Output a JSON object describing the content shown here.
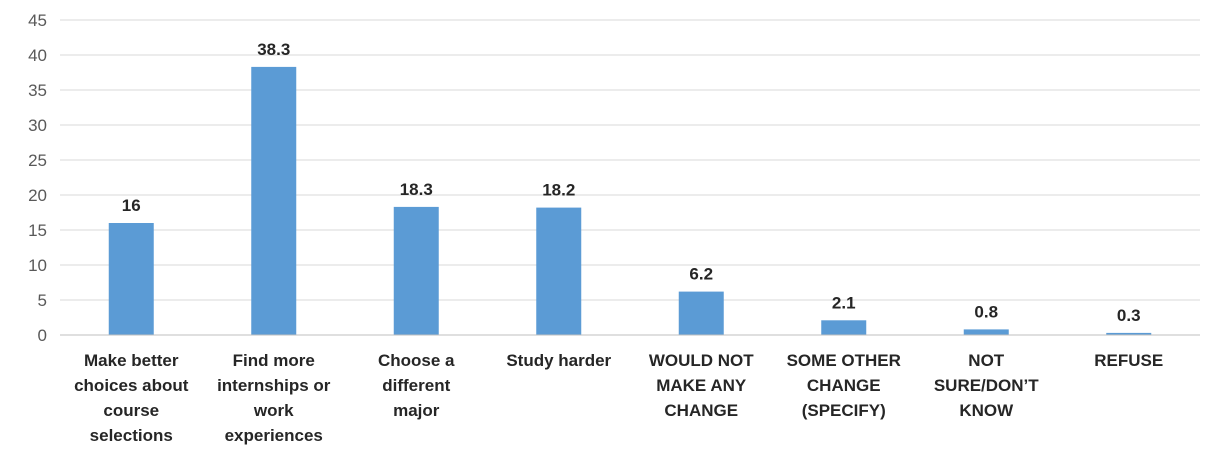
{
  "chart_data": {
    "type": "bar",
    "title": "",
    "xlabel": "",
    "ylabel": "",
    "categories": [
      [
        "Make better",
        "choices about",
        "course",
        "selections"
      ],
      [
        "Find more",
        "internships or",
        "work",
        "experiences"
      ],
      [
        "Choose a",
        "different",
        "major"
      ],
      [
        "Study harder"
      ],
      [
        "WOULD NOT",
        "MAKE ANY",
        "CHANGE"
      ],
      [
        "SOME OTHER",
        "CHANGE",
        "(SPECIFY)"
      ],
      [
        "NOT",
        "SURE/DON’T",
        "KNOW"
      ],
      [
        "REFUSE"
      ]
    ],
    "values": [
      16,
      38.3,
      18.3,
      18.2,
      6.2,
      2.1,
      0.8,
      0.3
    ],
    "data_labels": [
      "16",
      "38.3",
      "18.3",
      "18.2",
      "6.2",
      "2.1",
      "0.8",
      "0.3"
    ],
    "ylim": [
      0,
      45
    ],
    "yticks": [
      "0",
      "5",
      "10",
      "15",
      "20",
      "25",
      "30",
      "35",
      "40",
      "45"
    ],
    "grid": true,
    "legend": "none",
    "bar_color": "#5b9bd5"
  }
}
